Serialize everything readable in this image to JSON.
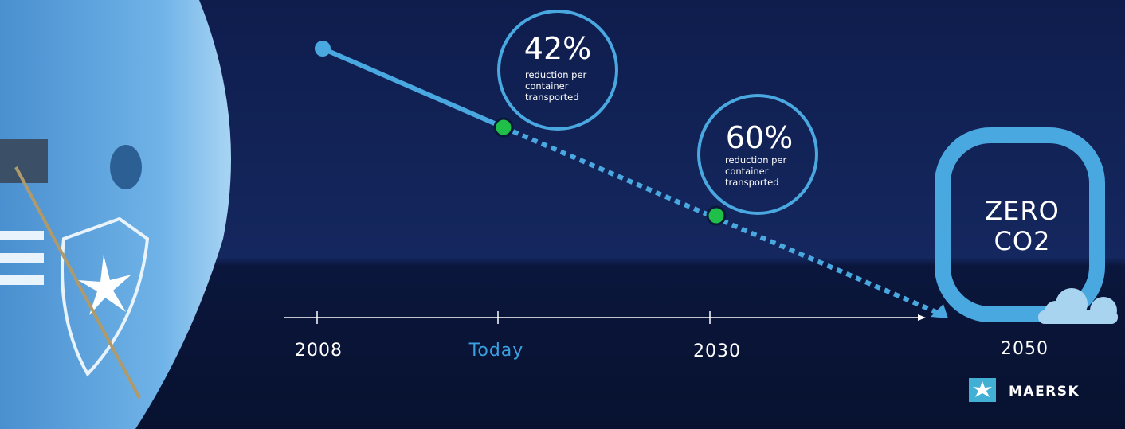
{
  "milestones": [
    {
      "value": "42%",
      "caption": [
        "reduction per",
        "container",
        "transported"
      ]
    },
    {
      "value": "60%",
      "caption": [
        "reduction per",
        "container",
        "transported"
      ]
    }
  ],
  "timeline": {
    "labels": [
      "2008",
      "Today",
      "2030",
      "2050"
    ]
  },
  "goal": {
    "lines": [
      "ZERO",
      "CO2"
    ]
  },
  "brand": "MAERSK"
}
